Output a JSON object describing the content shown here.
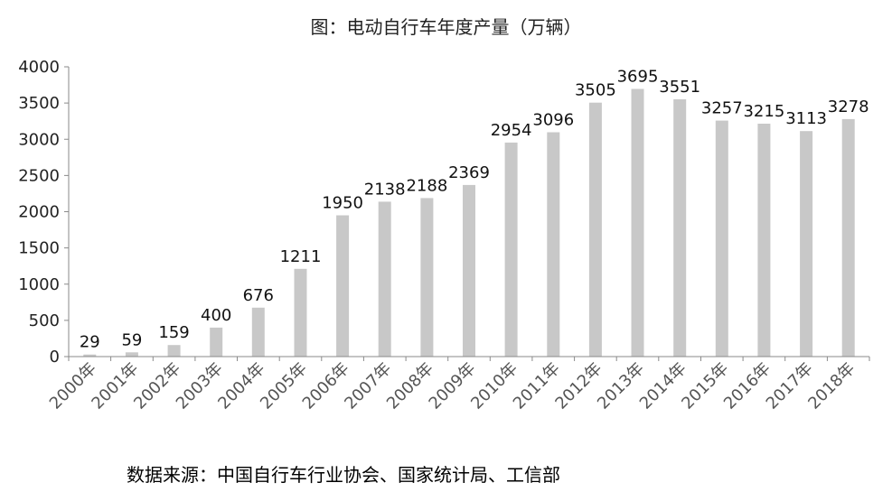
{
  "title": "图：电动自行车年度产量（万辆）",
  "source": "数据来源：中国自行车行业协会、国家统计局、工信部",
  "colors": {
    "bar": "#c8c8c8",
    "axis": "#8a8a8a"
  },
  "chart_data": {
    "type": "bar",
    "title": "图：电动自行车年度产量（万辆）",
    "categories": [
      "2000年",
      "2001年",
      "2002年",
      "2003年",
      "2004年",
      "2005年",
      "2006年",
      "2007年",
      "2008年",
      "2009年",
      "2010年",
      "2011年",
      "2012年",
      "2013年",
      "2014年",
      "2015年",
      "2016年",
      "2017年",
      "2018年"
    ],
    "values": [
      29,
      59,
      159,
      400,
      676,
      1211,
      1950,
      2138,
      2188,
      2369,
      2954,
      3096,
      3505,
      3695,
      3551,
      3257,
      3215,
      3113,
      3278
    ],
    "ylim": [
      0,
      4000
    ],
    "yticks": [
      0,
      500,
      1000,
      1500,
      2000,
      2500,
      3000,
      3500,
      4000
    ],
    "grid": false,
    "legend": "none",
    "data_labels": true
  }
}
